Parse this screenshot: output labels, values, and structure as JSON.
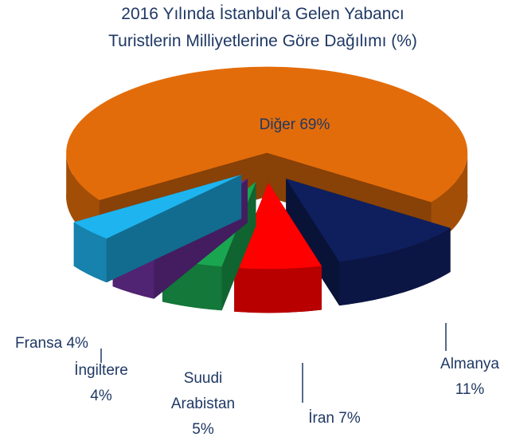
{
  "chart_data": {
    "type": "pie3d",
    "title": [
      "2016 Yılında İstanbul'a Gelen Yabancı",
      "Turistlerin Milliyetlerine Göre Dağılımı (%)"
    ],
    "categories": [
      "Diğer",
      "Almanya",
      "İran",
      "Suudi Arabistan",
      "İngiltere",
      "Fransa"
    ],
    "values": [
      69,
      11,
      7,
      5,
      4,
      4
    ],
    "value_labels": [
      "69%",
      "11%",
      "7%",
      "5%",
      "4%",
      "4%"
    ],
    "colors": [
      "#e36c0a",
      "#0f1f5e",
      "#ff0000",
      "#1aa650",
      "#7030a0",
      "#1eb4f0"
    ]
  }
}
